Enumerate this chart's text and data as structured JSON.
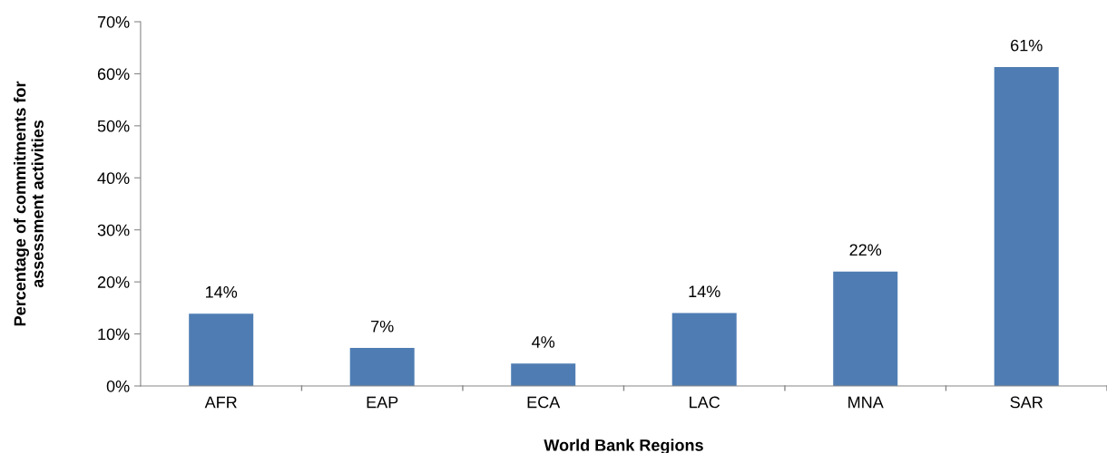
{
  "chart_data": {
    "type": "bar",
    "xlabel": "World Bank Regions",
    "ylabel": "Percentage of commitments for\nassessment activities",
    "categories": [
      "AFR",
      "EAP",
      "ECA",
      "LAC",
      "MNA",
      "SAR"
    ],
    "values": [
      13.9,
      7.3,
      4.3,
      14.0,
      22.0,
      61.3
    ],
    "value_labels": [
      "14%",
      "7%",
      "4%",
      "14%",
      "22%",
      "61%"
    ],
    "color": "#4f7db3",
    "ylim": [
      0,
      70
    ],
    "yticks": [
      {
        "value": 0,
        "label": "0%"
      },
      {
        "value": 10,
        "label": "10%"
      },
      {
        "value": 20,
        "label": "20%"
      },
      {
        "value": 30,
        "label": "30%"
      },
      {
        "value": 40,
        "label": "40%"
      },
      {
        "value": 50,
        "label": "50%"
      },
      {
        "value": 60,
        "label": "60%"
      },
      {
        "value": 70,
        "label": "70%"
      }
    ],
    "grid": false
  }
}
